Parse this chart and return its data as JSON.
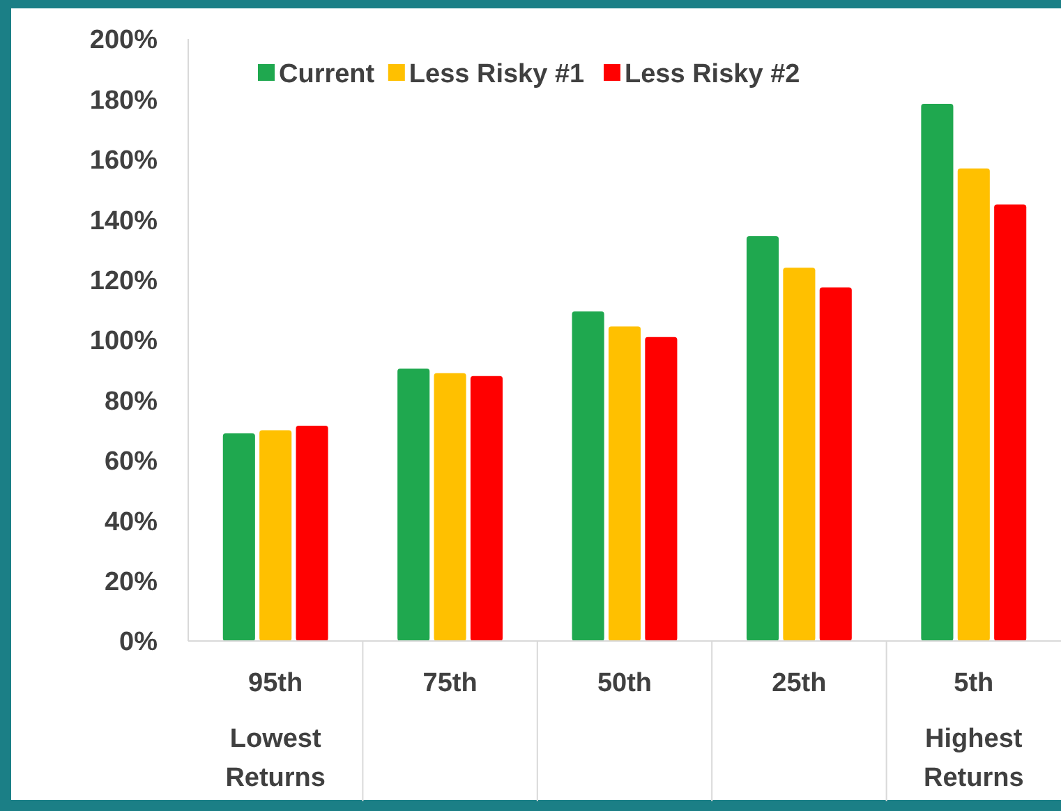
{
  "chart_data": {
    "type": "bar",
    "categories": [
      "95th\nLowest\nReturns",
      "75th",
      "50th",
      "25th",
      "5th\nHighest\nReturns"
    ],
    "series": [
      {
        "name": "Current",
        "color": "#1fa84f",
        "values": [
          69,
          90.5,
          109.5,
          134.5,
          178.5
        ]
      },
      {
        "name": "Less Risky #1",
        "color": "#ffc000",
        "values": [
          70,
          89,
          104.5,
          124,
          157
        ]
      },
      {
        "name": "Less Risky #2",
        "color": "#ff0000",
        "values": [
          71.5,
          88,
          101,
          117.5,
          145
        ]
      }
    ],
    "ylim": [
      0,
      200
    ],
    "yticks": [
      {
        "value": 0,
        "label": "0%"
      },
      {
        "value": 20,
        "label": "20%"
      },
      {
        "value": 40,
        "label": "40%"
      },
      {
        "value": 60,
        "label": "60%"
      },
      {
        "value": 80,
        "label": "80%"
      },
      {
        "value": 100,
        "label": "100%"
      },
      {
        "value": 120,
        "label": "120%"
      },
      {
        "value": 140,
        "label": "140%"
      },
      {
        "value": 160,
        "label": "160%"
      },
      {
        "value": 180,
        "label": "180%"
      },
      {
        "value": 200,
        "label": "200%"
      }
    ],
    "grid": false,
    "legend": "top"
  }
}
